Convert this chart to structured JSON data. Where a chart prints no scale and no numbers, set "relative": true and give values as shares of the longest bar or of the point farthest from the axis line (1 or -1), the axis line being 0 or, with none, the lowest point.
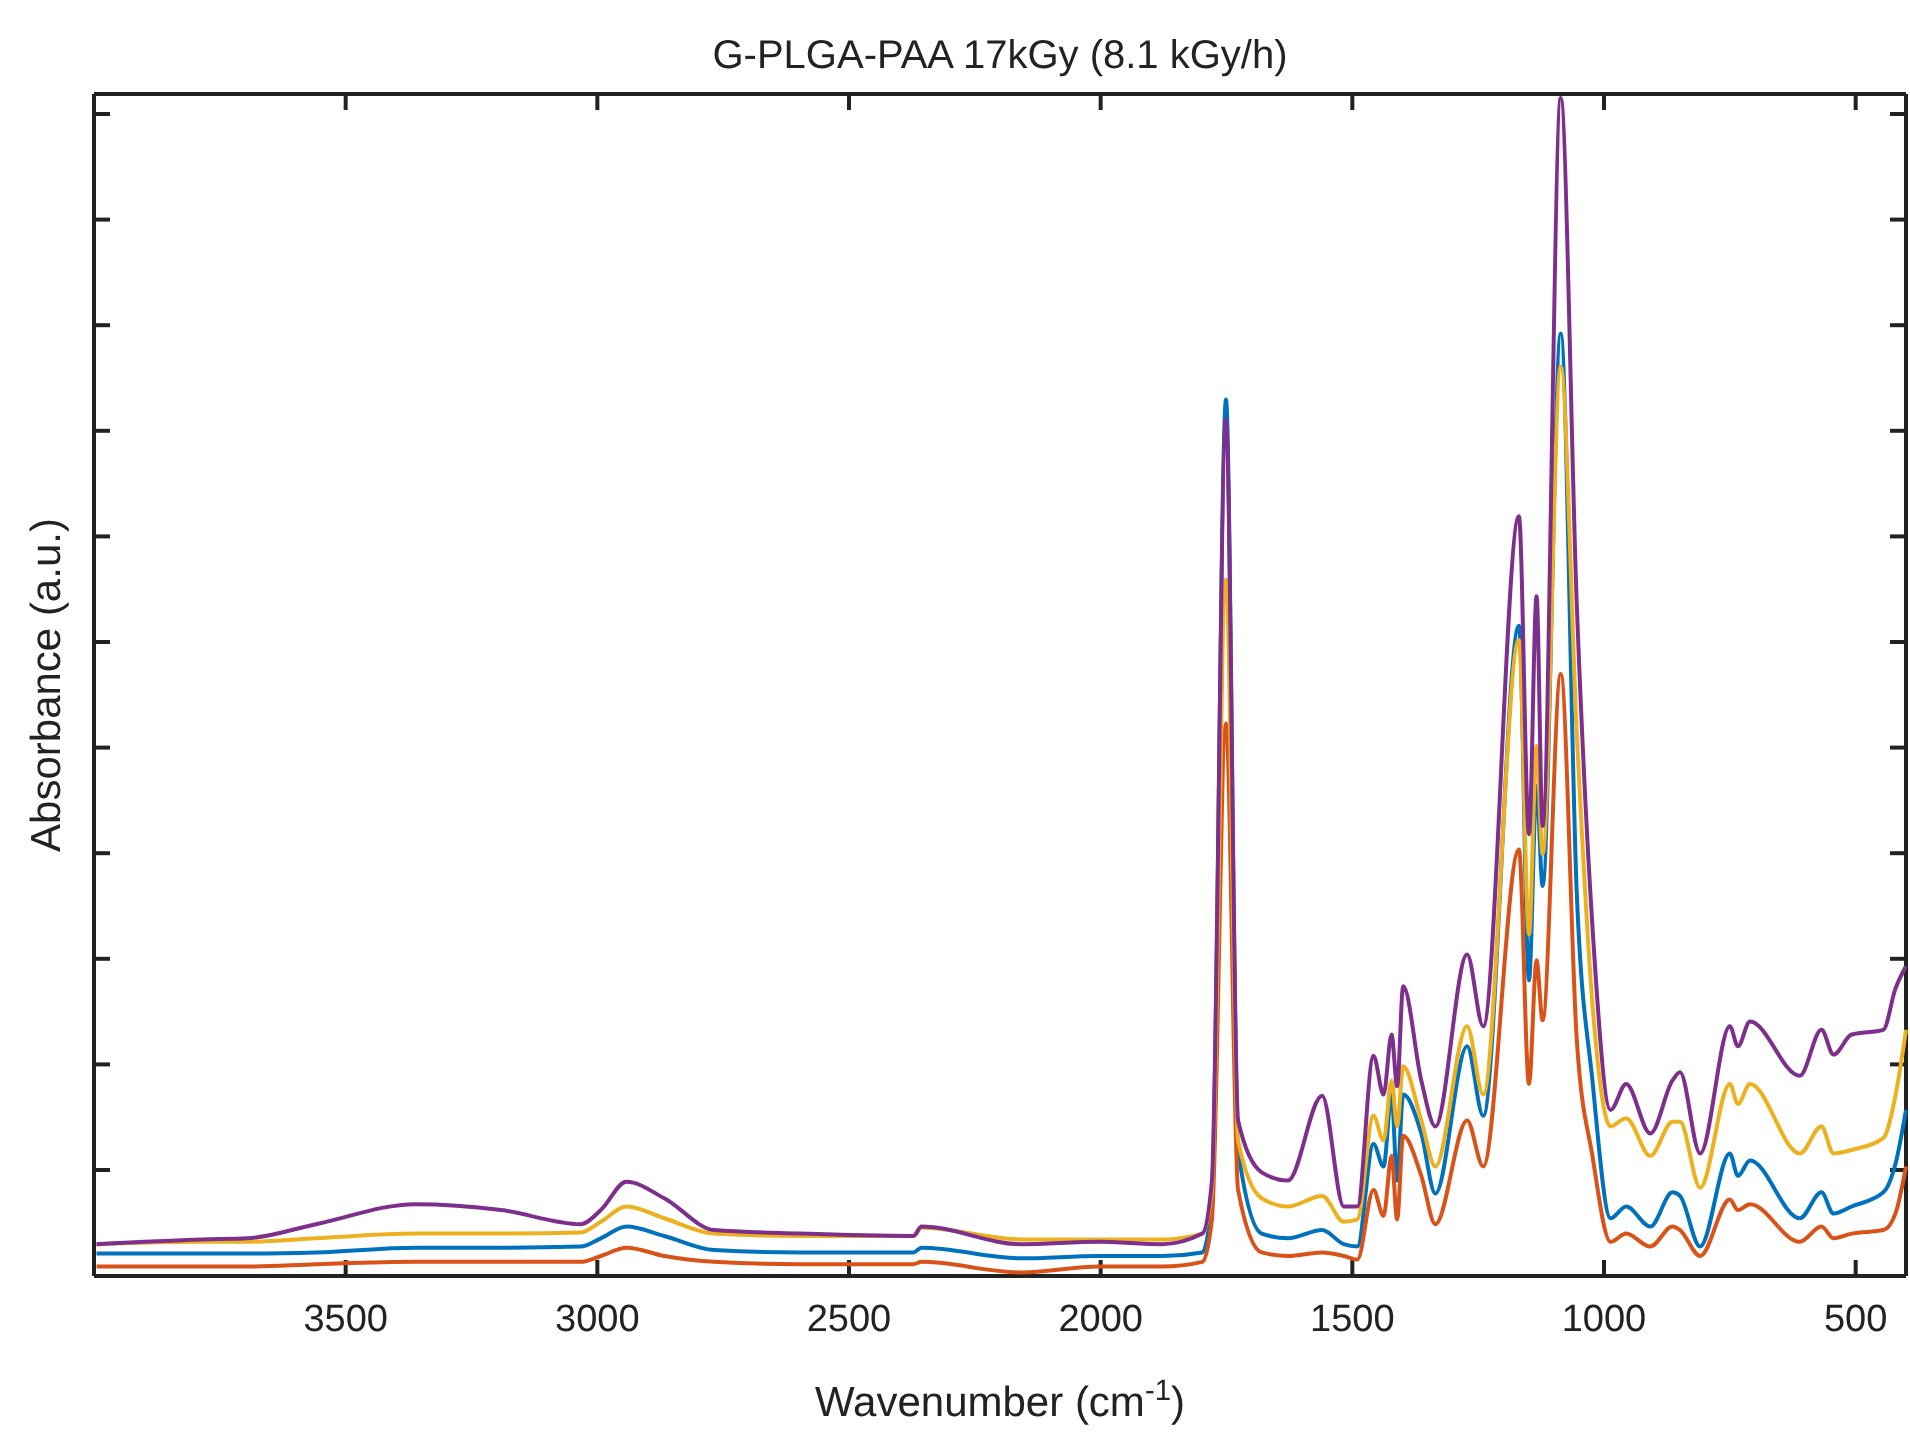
{
  "chart_data": {
    "type": "line",
    "title": "G-PLGA-PAA 17kGy (8.1 kGy/h)",
    "xlabel": "Wavenumber (cm$^{-1}$)",
    "ylabel": "Absorbance (a.u.)",
    "relative": true,
    "xlim": [
      4000,
      400
    ],
    "xticks": [
      3500,
      3000,
      2500,
      2000,
      1500,
      1000,
      500
    ],
    "x": [
      3995,
      3785,
      3694,
      3559,
      3361,
      3191,
      3033,
      2993,
      2942,
      2867,
      2768,
      2598,
      2372,
      2356,
      2158,
      2004,
      1878,
      1798,
      1779,
      1751,
      1727,
      1680,
      1628,
      1560,
      1517,
      1490,
      1458,
      1438,
      1422,
      1411,
      1399,
      1363,
      1335,
      1272,
      1240,
      1169,
      1149,
      1134,
      1122,
      1086,
      1054,
      1023,
      987,
      956,
      908,
      864,
      849,
      809,
      750,
      734,
      710,
      611,
      568,
      544,
      508,
      445,
      421,
      400
    ],
    "series": [
      {
        "color": "#0072bd",
        "values": [
          0.019,
          0.019,
          0.019,
          0.02,
          0.024,
          0.024,
          0.025,
          0.032,
          0.042,
          0.034,
          0.022,
          0.02,
          0.02,
          0.024,
          0.015,
          0.017,
          0.017,
          0.02,
          0.065,
          0.744,
          0.107,
          0.036,
          0.032,
          0.039,
          0.027,
          0.025,
          0.112,
          0.093,
          0.154,
          0.081,
          0.154,
          0.121,
          0.07,
          0.195,
          0.136,
          0.552,
          0.251,
          0.416,
          0.331,
          0.8,
          0.324,
          0.166,
          0.049,
          0.059,
          0.042,
          0.071,
          0.068,
          0.025,
          0.104,
          0.085,
          0.098,
          0.049,
          0.071,
          0.053,
          0.059,
          0.071,
          0.095,
          0.141
        ]
      },
      {
        "color": "#d95319",
        "values": [
          0.008,
          0.008,
          0.008,
          0.01,
          0.012,
          0.012,
          0.012,
          0.017,
          0.024,
          0.017,
          0.012,
          0.01,
          0.01,
          0.012,
          0.003,
          0.008,
          0.008,
          0.012,
          0.048,
          0.469,
          0.073,
          0.02,
          0.017,
          0.02,
          0.017,
          0.014,
          0.073,
          0.051,
          0.102,
          0.048,
          0.119,
          0.085,
          0.044,
          0.132,
          0.093,
          0.362,
          0.163,
          0.268,
          0.217,
          0.511,
          0.2,
          0.102,
          0.029,
          0.036,
          0.025,
          0.042,
          0.039,
          0.017,
          0.065,
          0.056,
          0.061,
          0.029,
          0.042,
          0.032,
          0.036,
          0.039,
          0.053,
          0.093
        ]
      },
      {
        "color": "#edb120",
        "values": [
          0.027,
          0.029,
          0.029,
          0.032,
          0.036,
          0.036,
          0.037,
          0.046,
          0.059,
          0.049,
          0.036,
          0.034,
          0.034,
          0.041,
          0.031,
          0.031,
          0.031,
          0.036,
          0.073,
          0.591,
          0.115,
          0.066,
          0.059,
          0.068,
          0.046,
          0.048,
          0.136,
          0.115,
          0.166,
          0.127,
          0.178,
          0.132,
          0.093,
          0.212,
          0.154,
          0.54,
          0.29,
          0.45,
          0.358,
          0.772,
          0.46,
          0.231,
          0.127,
          0.134,
          0.102,
          0.131,
          0.131,
          0.075,
          0.163,
          0.146,
          0.163,
          0.104,
          0.127,
          0.104,
          0.107,
          0.117,
          0.153,
          0.209
        ]
      },
      {
        "color": "#7e2f8e",
        "values": [
          0.027,
          0.031,
          0.032,
          0.044,
          0.061,
          0.056,
          0.044,
          0.056,
          0.08,
          0.066,
          0.039,
          0.036,
          0.034,
          0.042,
          0.027,
          0.029,
          0.027,
          0.036,
          0.081,
          0.727,
          0.132,
          0.088,
          0.081,
          0.153,
          0.059,
          0.059,
          0.187,
          0.154,
          0.205,
          0.161,
          0.246,
          0.166,
          0.127,
          0.273,
          0.212,
          0.645,
          0.375,
          0.577,
          0.382,
          1,
          0.569,
          0.297,
          0.141,
          0.163,
          0.121,
          0.166,
          0.173,
          0.104,
          0.212,
          0.195,
          0.216,
          0.17,
          0.209,
          0.188,
          0.205,
          0.209,
          0.244,
          0.263
        ]
      }
    ]
  }
}
